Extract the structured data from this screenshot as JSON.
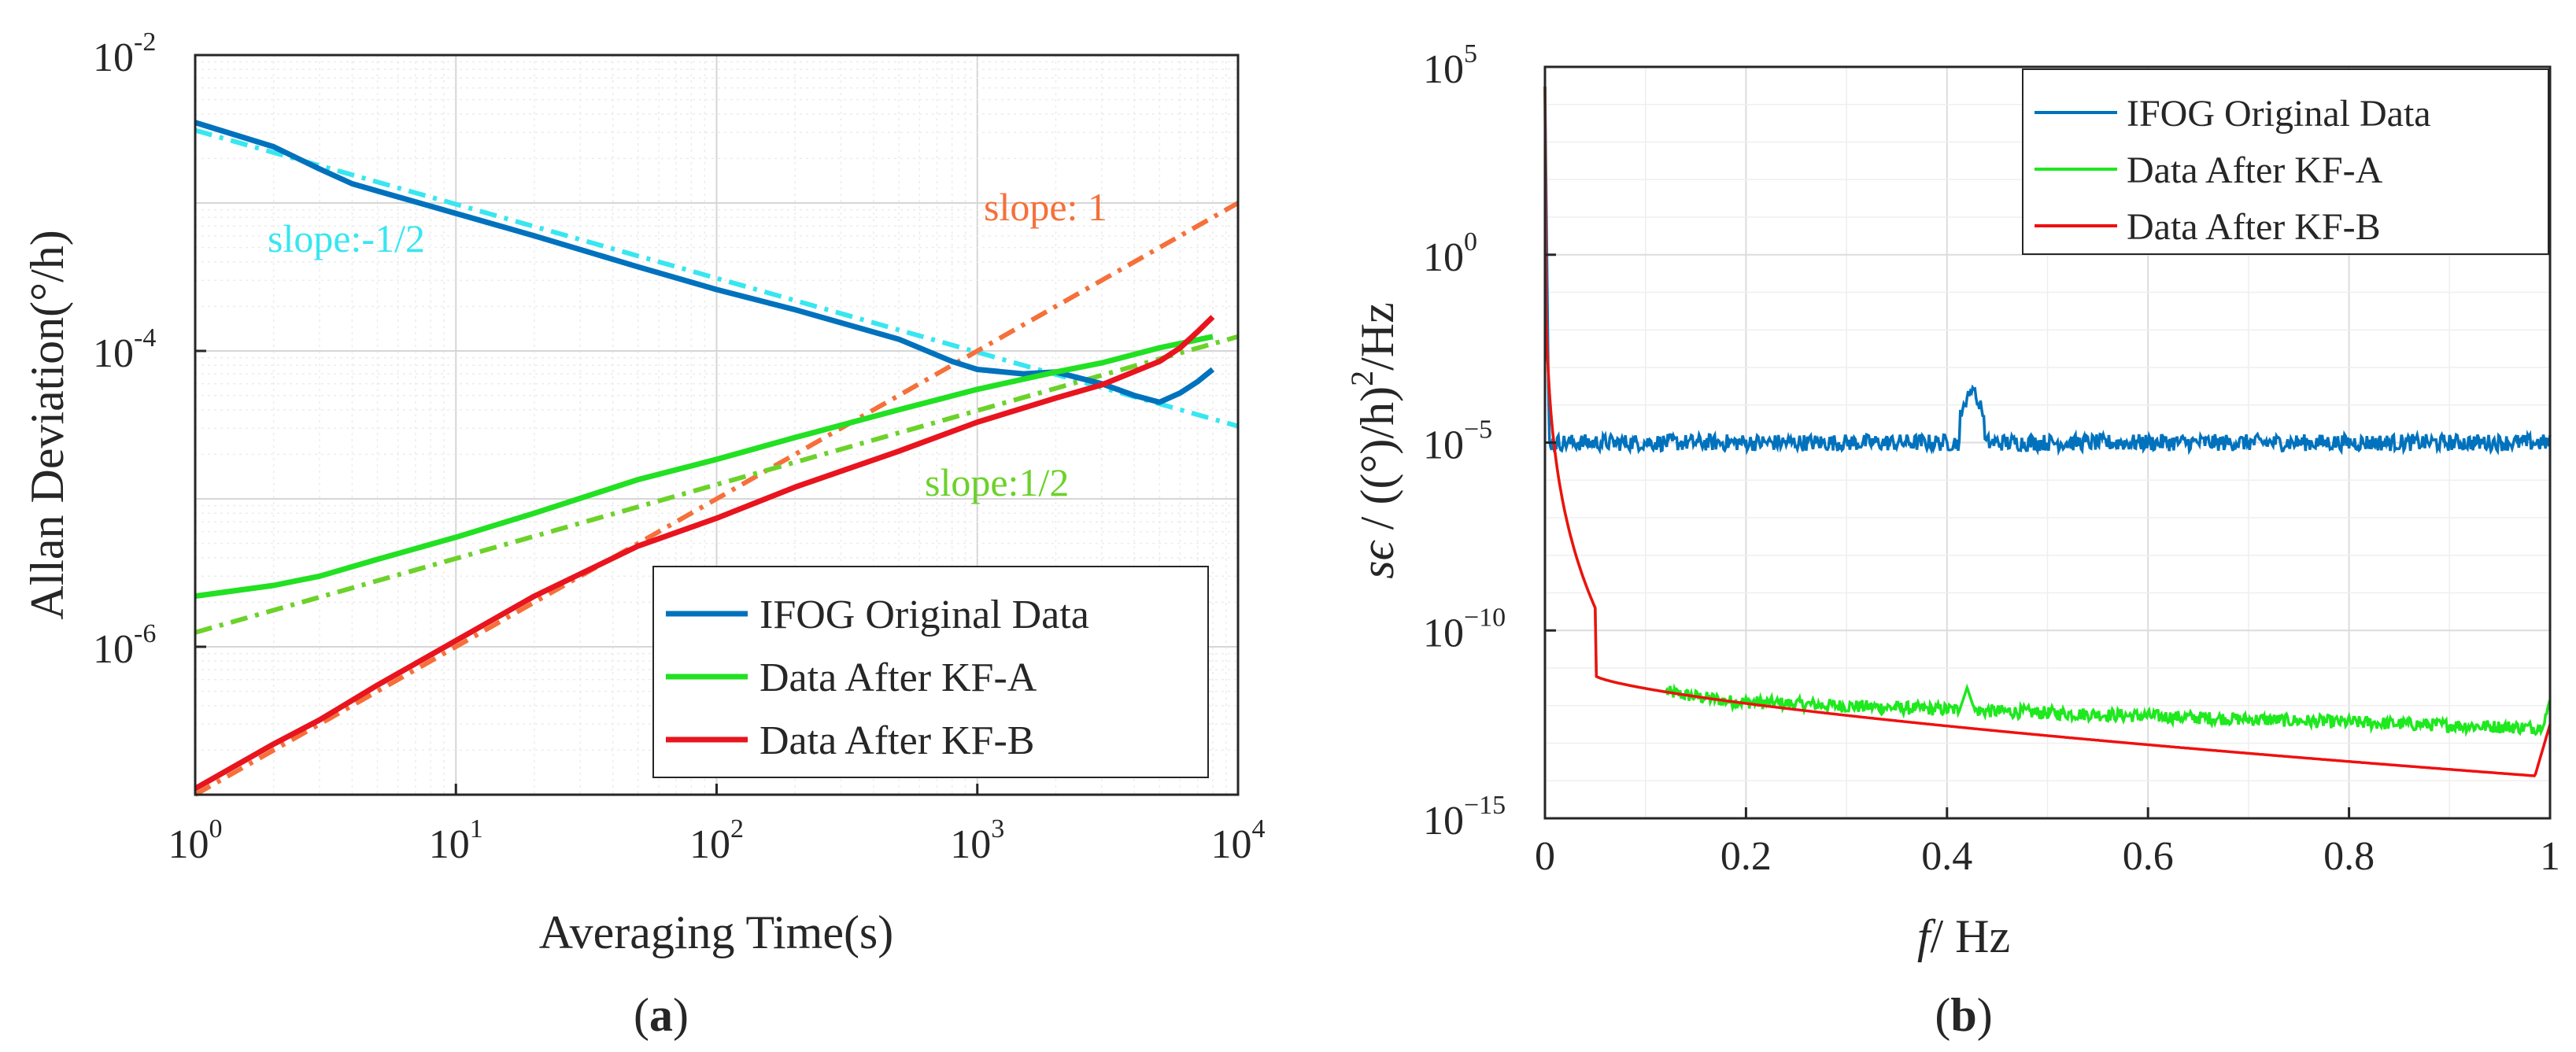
{
  "chart_data": [
    {
      "panel": "a",
      "type": "line",
      "scale": "log-log",
      "xlabel": "Averaging Time(s)",
      "ylabel": "Allan Deviation(°/h)",
      "xlim": [
        1,
        10000
      ],
      "ylim": [
        1e-07,
        0.01
      ],
      "x_ticks": [
        {
          "base": "10",
          "exp": "0",
          "v": 1
        },
        {
          "base": "10",
          "exp": "1",
          "v": 10
        },
        {
          "base": "10",
          "exp": "2",
          "v": 100
        },
        {
          "base": "10",
          "exp": "3",
          "v": 1000
        },
        {
          "base": "10",
          "exp": "4",
          "v": 10000
        }
      ],
      "y_ticks": [
        {
          "base": "10",
          "exp": "-6",
          "v": 1e-06
        },
        {
          "base": "10",
          "exp": "-4",
          "v": 0.0001
        },
        {
          "base": "10",
          "exp": "-2",
          "v": 0.01
        }
      ],
      "grid": true,
      "legend_position": "bottom-right",
      "series": [
        {
          "name": "IFOG Original Data",
          "color": "#0072bd",
          "style": "solid",
          "points": [
            [
              1,
              0.0035
            ],
            [
              2,
              0.0024
            ],
            [
              3,
              0.0017
            ],
            [
              4,
              0.00135
            ],
            [
              6,
              0.0011
            ],
            [
              10,
              0.00085
            ],
            [
              20,
              0.0006
            ],
            [
              50,
              0.00037
            ],
            [
              100,
              0.00026
            ],
            [
              200,
              0.00019
            ],
            [
              500,
              0.00012
            ],
            [
              800,
              8.5e-05
            ],
            [
              1000,
              7.5e-05
            ],
            [
              1500,
              7e-05
            ],
            [
              2000,
              7.2e-05
            ],
            [
              3000,
              6e-05
            ],
            [
              4000,
              5e-05
            ],
            [
              5000,
              4.5e-05
            ],
            [
              6000,
              5.2e-05
            ],
            [
              7000,
              6.2e-05
            ],
            [
              8000,
              7.5e-05
            ]
          ]
        },
        {
          "name": "Data After KF-A",
          "color": "#22e022",
          "style": "solid",
          "points": [
            [
              1,
              2.2e-06
            ],
            [
              2,
              2.6e-06
            ],
            [
              3,
              3e-06
            ],
            [
              5,
              3.9e-06
            ],
            [
              10,
              5.5e-06
            ],
            [
              20,
              8e-06
            ],
            [
              50,
              1.35e-05
            ],
            [
              100,
              1.85e-05
            ],
            [
              200,
              2.6e-05
            ],
            [
              500,
              4e-05
            ],
            [
              1000,
              5.5e-05
            ],
            [
              2000,
              7.2e-05
            ],
            [
              3000,
              8.3e-05
            ],
            [
              5000,
              0.000105
            ],
            [
              8000,
              0.000125
            ]
          ]
        },
        {
          "name": "Data After KF-B",
          "color": "#e8141e",
          "style": "solid",
          "points": [
            [
              1,
              1.1e-07
            ],
            [
              2,
              2.2e-07
            ],
            [
              3,
              3.2e-07
            ],
            [
              5,
              5.5e-07
            ],
            [
              10,
              1.1e-06
            ],
            [
              20,
              2.2e-06
            ],
            [
              50,
              4.8e-06
            ],
            [
              100,
              7.4e-06
            ],
            [
              200,
              1.2e-05
            ],
            [
              500,
              2.1e-05
            ],
            [
              1000,
              3.3e-05
            ],
            [
              2000,
              4.8e-05
            ],
            [
              3000,
              5.9e-05
            ],
            [
              5000,
              8.5e-05
            ],
            [
              6000,
              0.000105
            ],
            [
              7000,
              0.000135
            ],
            [
              8000,
              0.00017
            ]
          ]
        }
      ],
      "reference_lines": [
        {
          "label": "slope:-1/2",
          "color": "#38e6f0",
          "x": [
            1,
            10000
          ],
          "y": [
            0.0031,
            3.1e-05
          ]
        },
        {
          "label": "slope: 1",
          "color": "#f5703a",
          "x": [
            1,
            10000
          ],
          "y": [
            1e-07,
            0.001
          ]
        },
        {
          "label": "slope:1/2",
          "color": "#6cd22a",
          "x": [
            1,
            10000
          ],
          "y": [
            1.25e-06,
            0.000125
          ]
        }
      ],
      "panel_label": "(a)"
    },
    {
      "panel": "b",
      "type": "line",
      "scale": "semilog-y",
      "xlabel_italic": "f",
      "xlabel_rest": "/ Hz",
      "ylabel_italic": "sϵ",
      "ylabel_rest": " / ((°)/h)",
      "ylabel_sup": "2",
      "ylabel_tail": "/Hz",
      "xlim": [
        0,
        1
      ],
      "ylim": [
        1e-15,
        100000.0
      ],
      "x_ticks": [
        {
          "label": "0",
          "v": 0
        },
        {
          "label": "0.2",
          "v": 0.2
        },
        {
          "label": "0.4",
          "v": 0.4
        },
        {
          "label": "0.6",
          "v": 0.6
        },
        {
          "label": "0.8",
          "v": 0.8
        },
        {
          "label": "1",
          "v": 1
        }
      ],
      "y_ticks": [
        {
          "base": "10",
          "exp": "−15",
          "v": 1e-15
        },
        {
          "base": "10",
          "exp": "−10",
          "v": 1e-10
        },
        {
          "base": "10",
          "exp": "−5",
          "v": 1e-05
        },
        {
          "base": "10",
          "exp": "0",
          "v": 1
        },
        {
          "base": "10",
          "exp": "5",
          "v": 100000.0
        }
      ],
      "grid": true,
      "legend_position": "top-right",
      "series": [
        {
          "name": "IFOG Original Data",
          "color": "#0072bd",
          "baseline": 1e-05,
          "peak": {
            "x": 0.425,
            "y": 0.0003
          }
        },
        {
          "name": "Data After KF-A",
          "color": "#1ee81e",
          "peak": {
            "x": 0.42,
            "y": 3e-12
          }
        },
        {
          "name": "Data After KF-B",
          "color": "#f01010",
          "start_value": 30000.0
        }
      ],
      "panel_label": "(b)"
    }
  ]
}
